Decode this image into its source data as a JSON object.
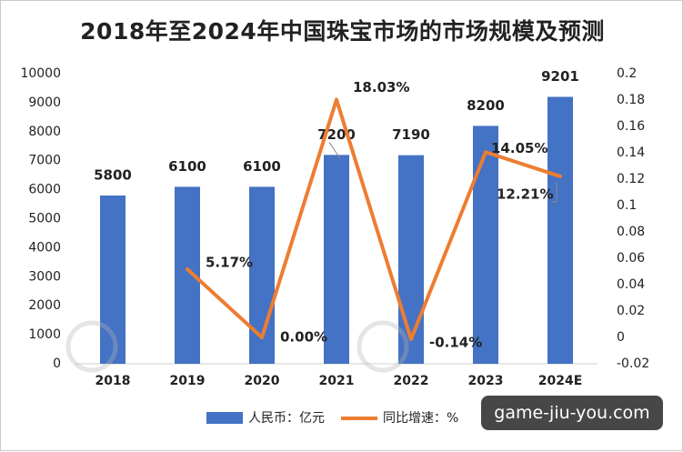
{
  "chart_data": {
    "type": "bar",
    "title": "2018年至2024年中国珠宝市场的市场规模及预测",
    "categories": [
      "2018",
      "2019",
      "2020",
      "2021",
      "2022",
      "2023",
      "2024E"
    ],
    "series": [
      {
        "name": "人民币：亿元",
        "type": "bar",
        "axis": "left",
        "values": [
          5800,
          6100,
          6100,
          7200,
          7190,
          8200,
          9201
        ],
        "labels": [
          "5800",
          "6100",
          "6100",
          "7200",
          "7190",
          "8200",
          "9201"
        ]
      },
      {
        "name": "同比增速：%",
        "type": "line",
        "axis": "right",
        "values": [
          null,
          0.0517,
          0.0,
          0.1803,
          -0.0014,
          0.1405,
          0.1221
        ],
        "labels": [
          "",
          "5.17%",
          "0.00%",
          "18.03%",
          "-0.14%",
          "14.05%",
          "12.21%"
        ]
      }
    ],
    "y_left": {
      "min": 0,
      "max": 10000,
      "ticks": [
        "0",
        "1000",
        "2000",
        "3000",
        "4000",
        "5000",
        "6000",
        "7000",
        "8000",
        "9000",
        "10000"
      ]
    },
    "y_right": {
      "min": -0.02,
      "max": 0.2,
      "ticks": [
        "-0.02",
        "0",
        "0.02",
        "0.04",
        "0.06",
        "0.08",
        "0.1",
        "0.12",
        "0.14",
        "0.16",
        "0.18",
        "0.2"
      ]
    },
    "legend_position": "bottom",
    "grid": false,
    "colors": {
      "bar": "#4472C4",
      "line": "#ED7D31"
    }
  },
  "watermark": {
    "badge_text": "game-jiu-you.com"
  }
}
